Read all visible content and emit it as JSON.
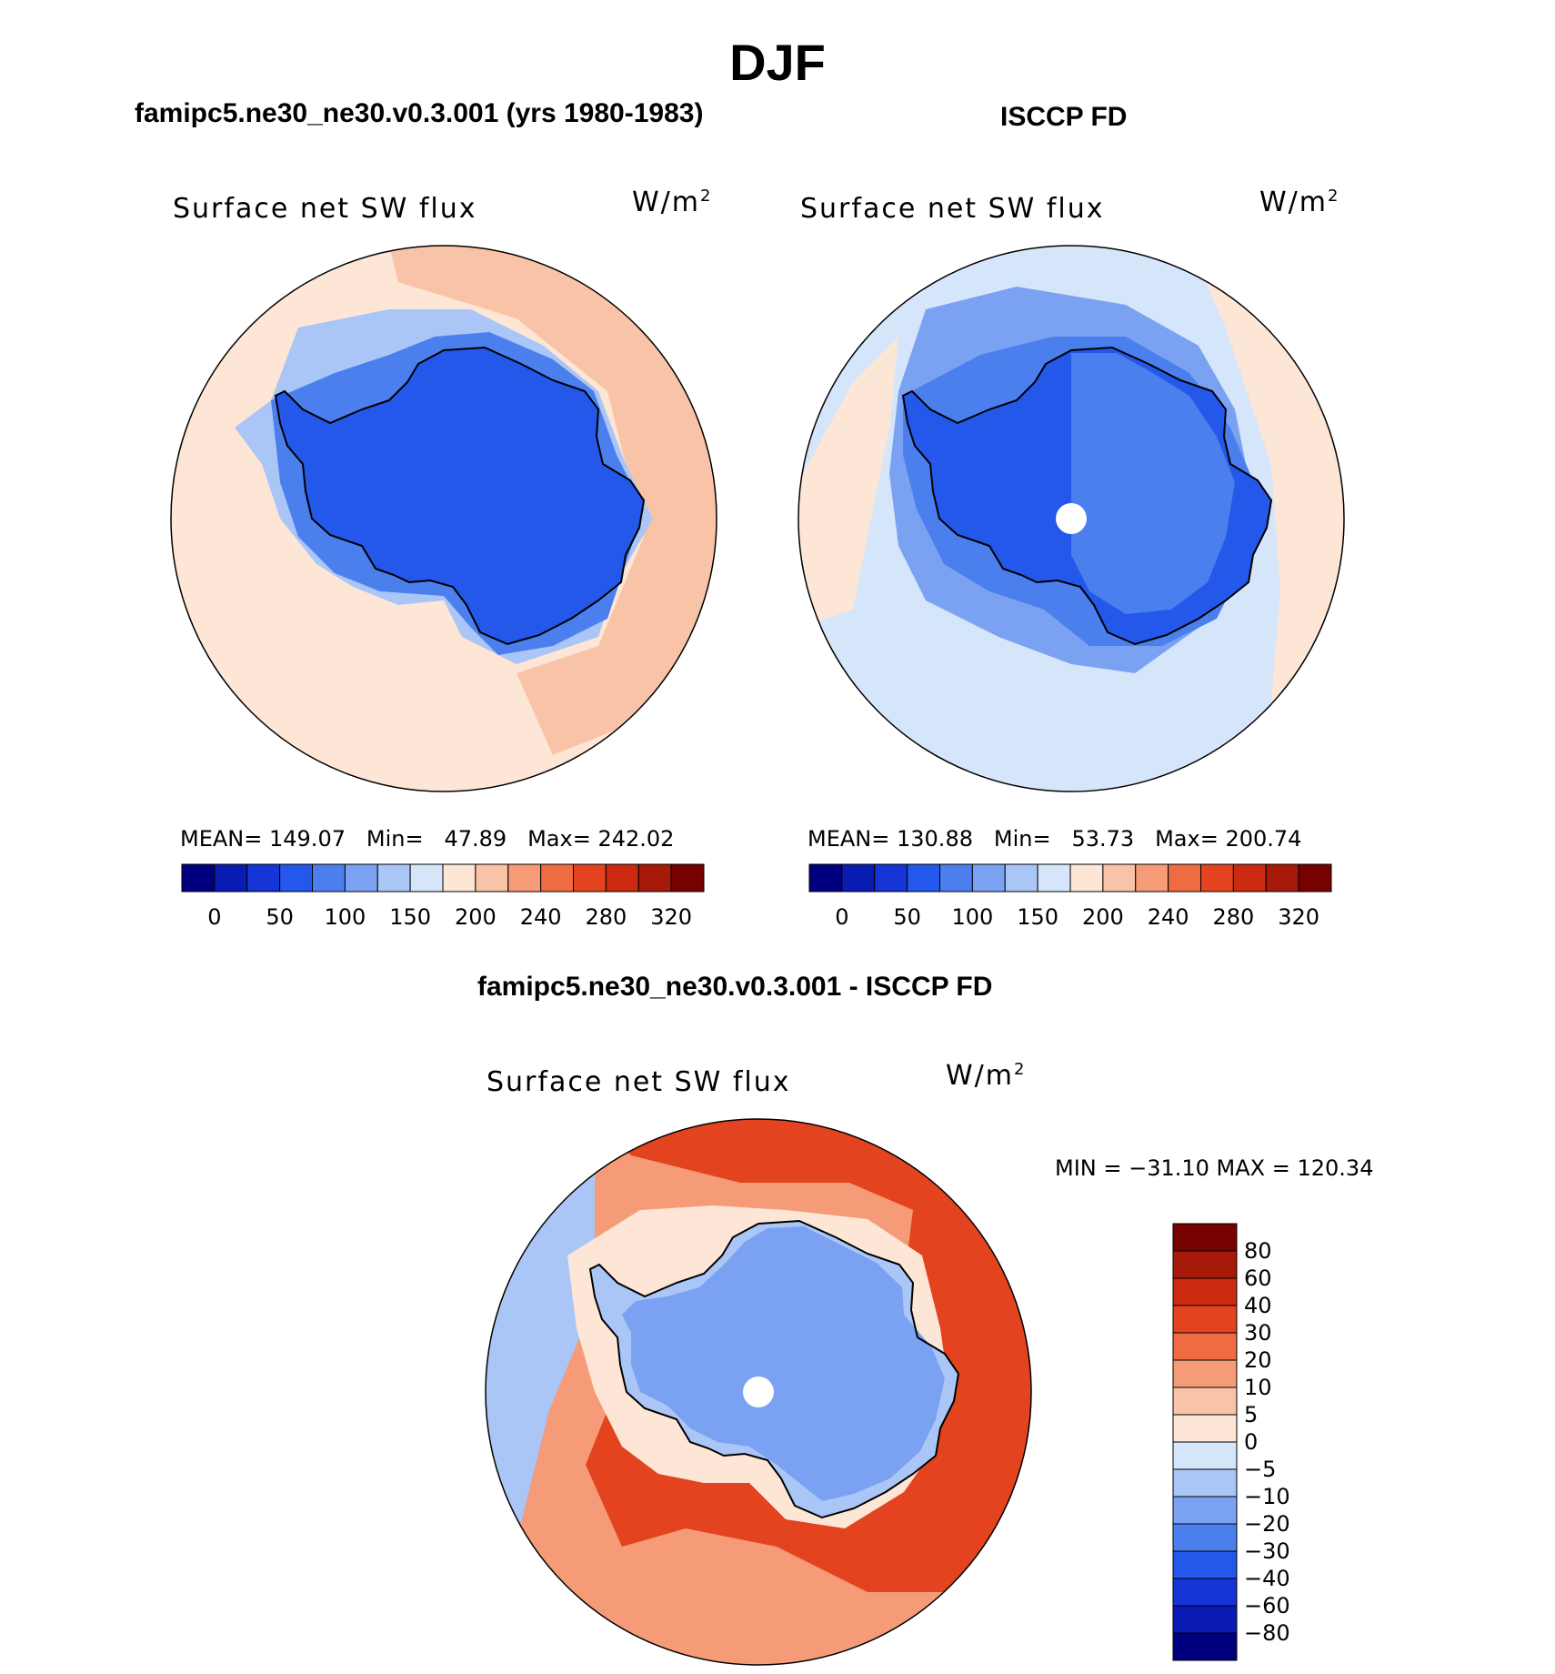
{
  "main_title": "DJF",
  "panels": [
    {
      "title": "famipc5.ne30_ne30.v0.3.001 (yrs 1980-1983)",
      "variable": "Surface net SW flux",
      "units_base": "W/m",
      "units_sup": "2",
      "stats": {
        "mean_label": "MEAN=",
        "mean": "149.07",
        "min_label": "Min=",
        "min": "47.89",
        "max_label": "Max=",
        "max": "242.02"
      }
    },
    {
      "title": "ISCCP FD",
      "variable": "Surface net SW flux",
      "units_base": "W/m",
      "units_sup": "2",
      "stats": {
        "mean_label": "MEAN=",
        "mean": "130.88",
        "min_label": "Min=",
        "min": "53.73",
        "max_label": "Max=",
        "max": "200.74"
      }
    },
    {
      "title": "famipc5.ne30_ne30.v0.3.001 - ISCCP FD",
      "variable": "Surface net SW flux",
      "units_base": "W/m",
      "units_sup": "2",
      "stats_text": "MIN = −31.10 MAX = 120.34"
    }
  ],
  "chart_data": [
    {
      "type": "heatmap",
      "projection": "south polar stereographic",
      "title": "famipc5.ne30_ne30.v0.3.001 (yrs 1980-1983)",
      "variable": "Surface net SW flux",
      "units": "W/m2",
      "mean": 149.07,
      "min": 47.89,
      "max": 242.02,
      "colorbar_ticks": [
        "0",
        "50",
        "100",
        "150",
        "200",
        "240",
        "280",
        "320"
      ],
      "colors": [
        "#00007f",
        "#0a1bb4",
        "#1535d6",
        "#2458ea",
        "#4a7fed",
        "#7ba2f2",
        "#aac6f7",
        "#d6e6fa",
        "#fde6d6",
        "#f9c3a8",
        "#f59b77",
        "#ef6c43",
        "#e3431f",
        "#cc2a10",
        "#a71908",
        "#770000"
      ],
      "regions": {
        "open_ocean": "#fde6d6",
        "ocean_30N_band": "#f9c3a8",
        "sea_ice_margin": "#aac6f7",
        "ice_edge": "#4a7fed",
        "antarctica": "#2458ea"
      }
    },
    {
      "type": "heatmap",
      "projection": "south polar stereographic",
      "title": "ISCCP FD",
      "variable": "Surface net SW flux",
      "units": "W/m2",
      "mean": 130.88,
      "min": 53.73,
      "max": 200.74,
      "colorbar_ticks": [
        "0",
        "50",
        "100",
        "150",
        "200",
        "240",
        "280",
        "320"
      ],
      "colors": [
        "#00007f",
        "#0a1bb4",
        "#1535d6",
        "#2458ea",
        "#4a7fed",
        "#7ba2f2",
        "#aac6f7",
        "#d6e6fa",
        "#fde6d6",
        "#f9c3a8",
        "#f59b77",
        "#ef6c43",
        "#e3431f",
        "#cc2a10",
        "#a71908",
        "#770000"
      ],
      "regions": {
        "open_ocean": "#d6e6fa",
        "outer_band": "#fde6d6",
        "sea_ice_margin": "#7ba2f2",
        "ice_edge": "#4a7fed",
        "antarctica": "#2458ea",
        "east_antarctica": "#4a7fed",
        "pole_hole": "#ffffff"
      }
    },
    {
      "type": "heatmap",
      "projection": "south polar stereographic",
      "title": "famipc5.ne30_ne30.v0.3.001 - ISCCP FD",
      "variable": "Surface net SW flux",
      "units": "W/m2",
      "min": -31.1,
      "max": 120.34,
      "colorbar_ticks": [
        "80",
        "60",
        "40",
        "30",
        "20",
        "10",
        "5",
        "0",
        "−5",
        "−10",
        "−20",
        "−30",
        "−40",
        "−60",
        "−80"
      ],
      "colors": [
        "#770000",
        "#a71908",
        "#cc2a10",
        "#e3431f",
        "#ef6c43",
        "#f59b77",
        "#f9c3a8",
        "#fde6d6",
        "#d6e6fa",
        "#aac6f7",
        "#7ba2f2",
        "#4a7fed",
        "#2458ea",
        "#1535d6",
        "#0a1bb4",
        "#00007f"
      ],
      "regions": {
        "outer_ring": "#f59b77",
        "mid_ring": "#e3431f",
        "inner_ring": "#fde6d6",
        "antarctica": "#aac6f7",
        "interior": "#7ba2f2",
        "pole_hole": "#ffffff"
      }
    }
  ]
}
